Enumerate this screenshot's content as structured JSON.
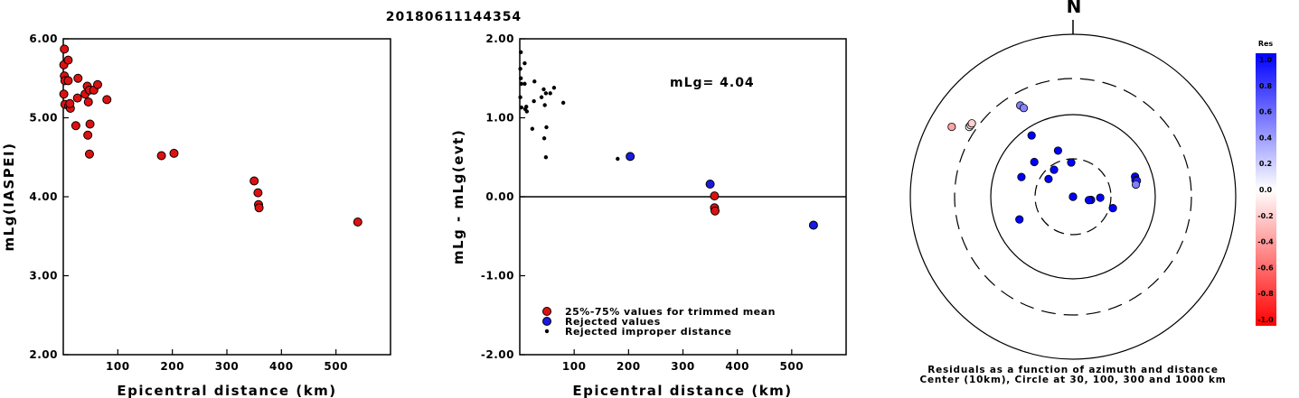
{
  "title": "20180611144354",
  "colors": {
    "accepted": "#dd1111",
    "rejected": "#1a1ae0",
    "improper": "#000000"
  },
  "chart_data": [
    {
      "type": "scatter",
      "xlabel": "Epicentral distance (km)",
      "ylabel": "mLg(IASPEI)",
      "xlim": [
        0,
        600
      ],
      "ylim": [
        2.0,
        6.0
      ],
      "xticks": [
        "100",
        "200",
        "300",
        "400",
        "500"
      ],
      "yticks": [
        "2.00",
        "3.00",
        "4.00",
        "5.00",
        "6.00"
      ],
      "series": [
        {
          "points": [
            [
              2,
              5.87
            ],
            [
              1,
              5.67
            ],
            [
              9,
              5.73
            ],
            [
              2,
              5.53
            ],
            [
              3,
              5.47
            ],
            [
              9,
              5.47
            ],
            [
              1,
              5.3
            ],
            [
              3,
              5.17
            ],
            [
              10,
              5.15
            ],
            [
              13,
              5.12
            ],
            [
              12,
              5.18
            ],
            [
              27,
              5.5
            ],
            [
              26,
              5.25
            ],
            [
              40,
              5.3
            ],
            [
              44,
              5.4
            ],
            [
              48,
              5.35
            ],
            [
              56,
              5.35
            ],
            [
              63,
              5.42
            ],
            [
              80,
              5.23
            ],
            [
              46,
              5.2
            ],
            [
              23,
              4.9
            ],
            [
              49,
              4.92
            ],
            [
              45,
              4.78
            ],
            [
              48,
              4.54
            ],
            [
              180,
              4.52
            ],
            [
              203,
              4.55
            ],
            [
              350,
              4.2
            ],
            [
              357,
              4.05
            ],
            [
              358,
              3.9
            ],
            [
              359,
              3.86
            ],
            [
              540,
              3.68
            ]
          ]
        }
      ]
    },
    {
      "type": "scatter",
      "xlabel": "Epicentral distance (km)",
      "ylabel": "mLg - mLg(evt)",
      "xlim": [
        0,
        600
      ],
      "ylim": [
        -2.0,
        2.0
      ],
      "xticks": [
        "100",
        "200",
        "300",
        "400",
        "500"
      ],
      "yticks": [
        "-2.00",
        "-1.00",
        "0.00",
        "1.00",
        "2.00"
      ],
      "annotation": "mLg= 4.04",
      "series": [
        {
          "name": "25%-75% values for trimmed mean",
          "points": [
            [
              358,
              0.01
            ],
            [
              358,
              -0.14
            ],
            [
              359,
              -0.18
            ]
          ]
        },
        {
          "name": "Rejected values",
          "points": [
            [
              203,
              0.51
            ],
            [
              350,
              0.16
            ],
            [
              540,
              -0.36
            ]
          ]
        },
        {
          "name": "Rejected improper distance",
          "points": [
            [
              2,
              1.83
            ],
            [
              1,
              1.62
            ],
            [
              9,
              1.69
            ],
            [
              2,
              1.5
            ],
            [
              3,
              1.43
            ],
            [
              9,
              1.43
            ],
            [
              1,
              1.26
            ],
            [
              3,
              1.13
            ],
            [
              10,
              1.11
            ],
            [
              13,
              1.08
            ],
            [
              12,
              1.14
            ],
            [
              27,
              1.46
            ],
            [
              26,
              1.21
            ],
            [
              40,
              1.26
            ],
            [
              44,
              1.36
            ],
            [
              48,
              1.31
            ],
            [
              56,
              1.31
            ],
            [
              63,
              1.38
            ],
            [
              80,
              1.19
            ],
            [
              46,
              1.16
            ],
            [
              23,
              0.86
            ],
            [
              49,
              0.88
            ],
            [
              45,
              0.74
            ],
            [
              48,
              0.5
            ],
            [
              180,
              0.48
            ]
          ]
        }
      ]
    },
    {
      "type": "scatter",
      "subtype": "polar",
      "title": "N",
      "caption_line1": "Residuals as a function of azimuth and distance",
      "caption_line2": "Center (10km), Circle at 30, 100, 300 and 1000 km",
      "colorbar_title": "Res",
      "colorbar_ticks": [
        "1.0",
        "0.8",
        "0.6",
        "0.4",
        "0.2",
        "0.0",
        "-0.2",
        "-0.4",
        "-0.6",
        "-0.8",
        "-1.0"
      ],
      "rings_km": [
        30,
        100,
        300,
        1000
      ],
      "points": [
        {
          "azimuth": 300,
          "distance_km": 540,
          "residual": -0.36
        },
        {
          "azimuth": 304,
          "distance_km": 360,
          "residual": 0.01
        },
        {
          "azimuth": 305,
          "distance_km": 358,
          "residual": -0.14
        },
        {
          "azimuth": 306,
          "distance_km": 359,
          "residual": -0.18
        },
        {
          "azimuth": 330,
          "distance_km": 203,
          "residual": 0.51
        },
        {
          "azimuth": 331,
          "distance_km": 180,
          "residual": 0.48
        },
        {
          "azimuth": 326,
          "distance_km": 80,
          "residual": 1.19
        },
        {
          "azimuth": 312,
          "distance_km": 44,
          "residual": 1.36
        },
        {
          "azimuth": 291,
          "distance_km": 48,
          "residual": 1.31
        },
        {
          "azimuth": 357,
          "distance_km": 27,
          "residual": 1.46
        },
        {
          "azimuth": 342,
          "distance_km": 40,
          "residual": 1.26
        },
        {
          "azimuth": 325,
          "distance_km": 26,
          "residual": 1.21
        },
        {
          "azimuth": 306,
          "distance_km": 24,
          "residual": 1.18
        },
        {
          "azimuth": 72,
          "distance_km": 63,
          "residual": 1.38
        },
        {
          "azimuth": 75,
          "distance_km": 62,
          "residual": 1.26
        },
        {
          "azimuth": 76,
          "distance_km": 64,
          "residual": 0.86
        },
        {
          "azimuth": 79,
          "distance_km": 61,
          "residual": 0.5
        },
        {
          "azimuth": 92,
          "distance_km": 22,
          "residual": 1.2
        },
        {
          "azimuth": 100,
          "distance_km": 17,
          "residual": 1.1
        },
        {
          "azimuth": 102,
          "distance_km": 16,
          "residual": 1.12
        },
        {
          "azimuth": 106,
          "distance_km": 33,
          "residual": 1.25
        },
        {
          "azimuth": 247,
          "distance_km": 52,
          "residual": 1.14
        },
        {
          "azimuth": 277,
          "distance_km": 9,
          "residual": 1.3
        },
        {
          "azimuth": 290,
          "distance_km": 10,
          "residual": 1.35
        }
      ]
    }
  ]
}
